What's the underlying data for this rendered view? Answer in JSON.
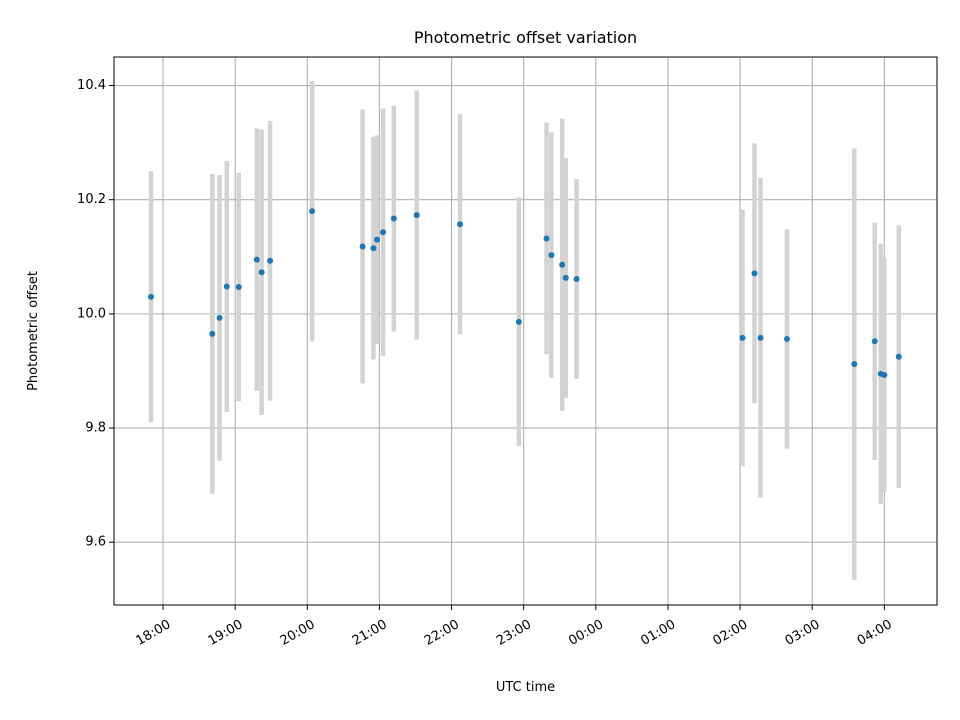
{
  "chart_data": {
    "type": "scatter",
    "title": "Photometric offset variation",
    "xlabel": "UTC time",
    "ylabel": "Photometric offset",
    "grid": true,
    "x_tick_labels": [
      "18:00",
      "19:00",
      "20:00",
      "21:00",
      "22:00",
      "23:00",
      "00:00",
      "01:00",
      "02:00",
      "03:00",
      "04:00"
    ],
    "x_tick_hours": [
      18,
      19,
      20,
      21,
      22,
      23,
      24,
      25,
      26,
      27,
      28
    ],
    "xlim_hours": [
      17.32,
      28.73
    ],
    "y_ticks": [
      9.6,
      9.8,
      10.0,
      10.2,
      10.4
    ],
    "y_tick_labels": [
      "9.6",
      "9.8",
      "10.0",
      "10.2",
      "10.4"
    ],
    "ylim": [
      9.49,
      10.45
    ],
    "colors": {
      "point": "#1f77b4",
      "errorbar": "#d3d3d3",
      "grid": "#b0b0b0"
    },
    "points": [
      {
        "time": "17:50",
        "value": 10.03,
        "err": 0.22
      },
      {
        "time": "18:41",
        "value": 9.965,
        "err": 0.28
      },
      {
        "time": "18:47",
        "value": 9.993,
        "err": 0.25
      },
      {
        "time": "18:53",
        "value": 10.048,
        "err": 0.22
      },
      {
        "time": "19:03",
        "value": 10.047,
        "err": 0.2
      },
      {
        "time": "19:18",
        "value": 10.095,
        "err": 0.23
      },
      {
        "time": "19:22",
        "value": 10.073,
        "err": 0.25
      },
      {
        "time": "19:29",
        "value": 10.093,
        "err": 0.245
      },
      {
        "time": "20:04",
        "value": 10.18,
        "err": 0.228
      },
      {
        "time": "20:46",
        "value": 10.118,
        "err": 0.24
      },
      {
        "time": "20:55",
        "value": 10.115,
        "err": 0.195
      },
      {
        "time": "20:58",
        "value": 10.13,
        "err": 0.183
      },
      {
        "time": "21:03",
        "value": 10.143,
        "err": 0.217
      },
      {
        "time": "21:12",
        "value": 10.167,
        "err": 0.198
      },
      {
        "time": "21:31",
        "value": 10.173,
        "err": 0.218
      },
      {
        "time": "22:07",
        "value": 10.157,
        "err": 0.193
      },
      {
        "time": "22:56",
        "value": 9.986,
        "err": 0.218
      },
      {
        "time": "23:19",
        "value": 10.132,
        "err": 0.203
      },
      {
        "time": "23:23",
        "value": 10.103,
        "err": 0.215
      },
      {
        "time": "23:32",
        "value": 10.086,
        "err": 0.256
      },
      {
        "time": "23:35",
        "value": 10.063,
        "err": 0.21
      },
      {
        "time": "23:44",
        "value": 10.061,
        "err": 0.175
      },
      {
        "time": "02:02",
        "value": 9.958,
        "err": 0.225
      },
      {
        "time": "02:12",
        "value": 10.071,
        "err": 0.228
      },
      {
        "time": "02:17",
        "value": 9.958,
        "err": 0.28
      },
      {
        "time": "02:39",
        "value": 9.956,
        "err": 0.192
      },
      {
        "time": "03:35",
        "value": 9.912,
        "err": 0.378
      },
      {
        "time": "03:52",
        "value": 9.952,
        "err": 0.208
      },
      {
        "time": "03:57",
        "value": 9.895,
        "err": 0.228
      },
      {
        "time": "04:00",
        "value": 9.893,
        "err": 0.205
      },
      {
        "time": "04:12",
        "value": 9.925,
        "err": 0.23
      }
    ]
  }
}
